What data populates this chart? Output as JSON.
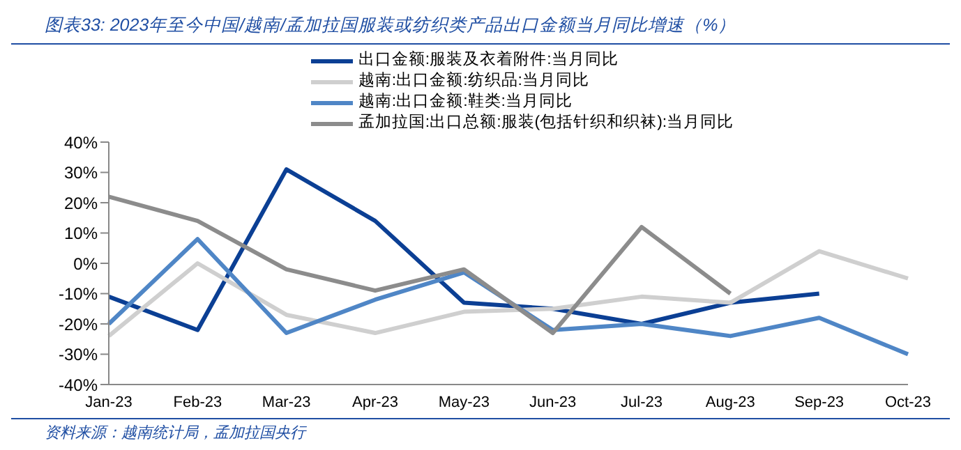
{
  "chart_data": {
    "type": "line",
    "title": "图表33: 2023年至今中国/越南/孟加拉国服装或纺织类产品出口金额当月同比增速（%）",
    "categories": [
      "Jan-23",
      "Feb-23",
      "Mar-23",
      "Apr-23",
      "May-23",
      "Jun-23",
      "Jul-23",
      "Aug-23",
      "Sep-23",
      "Oct-23"
    ],
    "series": [
      {
        "name": "出口金额:服装及衣着附件:当月同比",
        "color": "#0b3f94",
        "values": [
          -11,
          -22,
          31,
          14,
          -13,
          -15,
          -20,
          -13,
          -10,
          null
        ]
      },
      {
        "name": "越南:出口金额:纺织品:当月同比",
        "color": "#cfcfcf",
        "values": [
          -24,
          0,
          -17,
          -23,
          -16,
          -15,
          -11,
          -13,
          4,
          -5
        ]
      },
      {
        "name": "越南:出口金额:鞋类:当月同比",
        "color": "#4f86c6",
        "values": [
          -20,
          8,
          -23,
          -12,
          -3,
          -22,
          -20,
          -24,
          -18,
          -30
        ]
      },
      {
        "name": "孟加拉国:出口总额:服装(包括针织和织袜):当月同比",
        "color": "#8c8c8c",
        "values": [
          22,
          14,
          -2,
          -9,
          -2,
          -23,
          12,
          -10,
          null,
          null
        ]
      }
    ],
    "ylim": [
      -40,
      40
    ],
    "yticks": [
      {
        "value": -40,
        "label": "-40%"
      },
      {
        "value": -30,
        "label": "-30%"
      },
      {
        "value": -20,
        "label": "-20%"
      },
      {
        "value": -10,
        "label": "-10%"
      },
      {
        "value": 0,
        "label": "0%"
      },
      {
        "value": 10,
        "label": "10%"
      },
      {
        "value": 20,
        "label": "20%"
      },
      {
        "value": 30,
        "label": "30%"
      },
      {
        "value": 40,
        "label": "40%"
      }
    ],
    "grid": false,
    "legend": "top",
    "marker": "none",
    "line_style": "solid",
    "annotations": [
      "资料来源：越南统计局，孟加拉国央行"
    ]
  }
}
